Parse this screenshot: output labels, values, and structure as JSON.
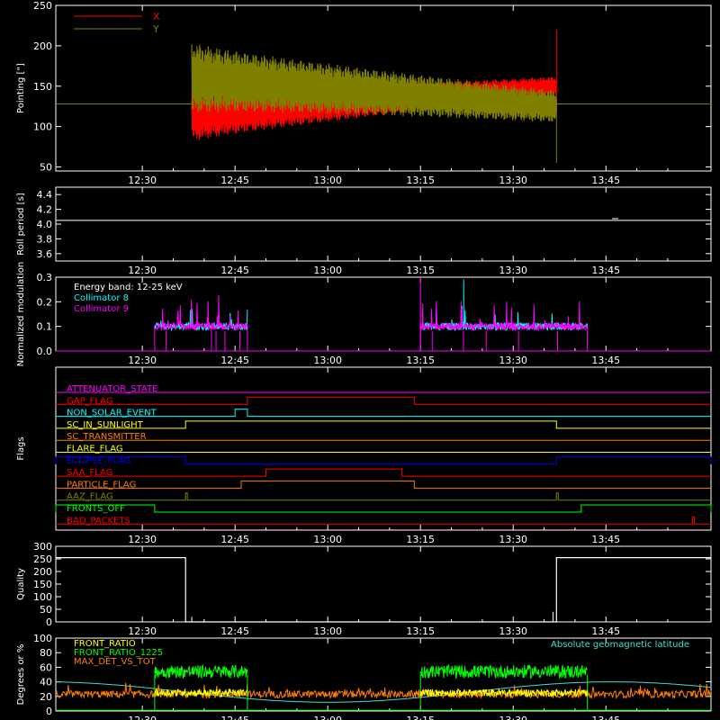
{
  "colors": {
    "background": "#000000",
    "axis": "#ffffff",
    "red": "#ff0000",
    "olive": "#808000",
    "cyan": "#00ffff",
    "magenta": "#ff00ff",
    "orange": "#ff7f00",
    "green": "#00ff00",
    "yellow": "#ffff00",
    "blue": "#0000ff",
    "white": "#ffffff",
    "lightcyan": "#40e0d0"
  },
  "time_axis": {
    "start": "12:16",
    "end": "14:02",
    "ticks": [
      "12:30",
      "12:45",
      "13:00",
      "13:15",
      "13:30",
      "13:45"
    ]
  },
  "chart_data": [
    {
      "id": "pointing",
      "type": "line",
      "ylabel": "Pointing [\"]",
      "ylim": [
        45,
        250
      ],
      "yticks": [
        50,
        100,
        150,
        200,
        250
      ],
      "legend": [
        {
          "label": "X",
          "color": "red"
        },
        {
          "label": "Y",
          "color": "olive"
        }
      ],
      "series": [
        {
          "name": "X",
          "color": "red",
          "baseline": 128,
          "active_start": "12:38",
          "active_end": "13:37",
          "center_start": 115,
          "center_end": 150,
          "amp_start": 35,
          "amp_end": 12
        },
        {
          "name": "Y",
          "color": "olive",
          "baseline": 128,
          "active_start": "12:38",
          "active_end": "13:37",
          "center_start": 160,
          "center_end": 125,
          "amp_start": 45,
          "amp_end": 20
        }
      ]
    },
    {
      "id": "roll",
      "type": "line",
      "ylabel": "Roll period [s]",
      "ylim": [
        3.5,
        4.5
      ],
      "yticks": [
        "3.6",
        "3.8",
        "4.0",
        "4.2",
        "4.4"
      ],
      "series": [
        {
          "name": "roll",
          "color": "white",
          "value": 4.05
        }
      ]
    },
    {
      "id": "modulation",
      "type": "bar",
      "ylabel": "Normalized modulation",
      "ylim": [
        0,
        0.3
      ],
      "yticks": [
        "0.0",
        "0.1",
        "0.2",
        "0.3"
      ],
      "legend": [
        {
          "label": "Energy band: 12-25 keV",
          "color": "white"
        },
        {
          "label": "Collimator 8",
          "color": "cyan"
        },
        {
          "label": "Collimator 9",
          "color": "magenta"
        }
      ],
      "intervals": [
        [
          "12:32",
          "12:47"
        ],
        [
          "13:15",
          "13:42"
        ]
      ]
    },
    {
      "id": "flags",
      "type": "line",
      "ylabel": "Flags",
      "flags": [
        {
          "label": "ATTENUATOR_STATE",
          "color": "magenta",
          "on": []
        },
        {
          "label": "GAP_FLAG",
          "color": "red",
          "on": [
            [
              "12:47",
              "13:14"
            ]
          ]
        },
        {
          "label": "NON_SOLAR_EVENT",
          "color": "cyan",
          "on": [
            [
              "12:45",
              "12:47"
            ]
          ]
        },
        {
          "label": "SC_IN_SUNLIGHT",
          "color": "yellow",
          "on": [
            [
              "12:37",
              "13:37"
            ]
          ]
        },
        {
          "label": "SC_TRANSMITTER",
          "color": "orange",
          "on": []
        },
        {
          "label": "FLARE_FLAG",
          "color": "yellow",
          "on": []
        },
        {
          "label": "ECLIPSE_FLAG",
          "color": "blue",
          "on": [
            [
              "12:16",
              "12:37"
            ],
            [
              "13:37",
              "14:02"
            ]
          ]
        },
        {
          "label": "SAA_FLAG",
          "color": "red",
          "on": [
            [
              "12:50",
              "13:12"
            ]
          ]
        },
        {
          "label": "PARTICLE_FLAG",
          "color": "orange",
          "on": [
            [
              "12:46",
              "13:14"
            ]
          ]
        },
        {
          "label": "AAZ_FLAG",
          "color": "olive",
          "on": [
            [
              "12:37",
              "12:37"
            ],
            [
              "13:37",
              "13:37"
            ]
          ]
        },
        {
          "label": "FRONTS_OFF",
          "color": "green",
          "on": [
            [
              "12:16",
              "12:32"
            ],
            [
              "13:41",
              "14:02"
            ]
          ]
        },
        {
          "label": "BAD_PACKETS",
          "color": "red",
          "on": [
            [
              "13:59",
              "13:59"
            ]
          ]
        }
      ]
    },
    {
      "id": "quality",
      "type": "line",
      "ylabel": "Quality",
      "ylim": [
        0,
        300
      ],
      "yticks": [
        0,
        50,
        100,
        150,
        200,
        250,
        300
      ],
      "series": [
        {
          "name": "quality",
          "color": "white",
          "points": [
            [
              "12:16",
              255
            ],
            [
              "12:37",
              255
            ],
            [
              "12:37",
              0
            ],
            [
              "13:37",
              0
            ],
            [
              "13:37",
              255
            ],
            [
              "14:02",
              255
            ]
          ]
        }
      ]
    },
    {
      "id": "ratios",
      "type": "line",
      "ylabel": "Degrees or %",
      "ylim": [
        0,
        100
      ],
      "yticks": [
        0,
        20,
        40,
        60,
        80,
        100
      ],
      "legend": [
        {
          "label": "FRONT_RATIO",
          "color": "yellow"
        },
        {
          "label": "FRONT_RATIO_1225",
          "color": "green"
        },
        {
          "label": "MAX_DET_VS_TOT",
          "color": "orange"
        }
      ],
      "right_legend": {
        "label": "Absolute geomagnetic latitude",
        "color": "lightcyan"
      },
      "intervals": [
        [
          "12:32",
          "12:47"
        ],
        [
          "13:15",
          "13:42"
        ]
      ]
    }
  ]
}
